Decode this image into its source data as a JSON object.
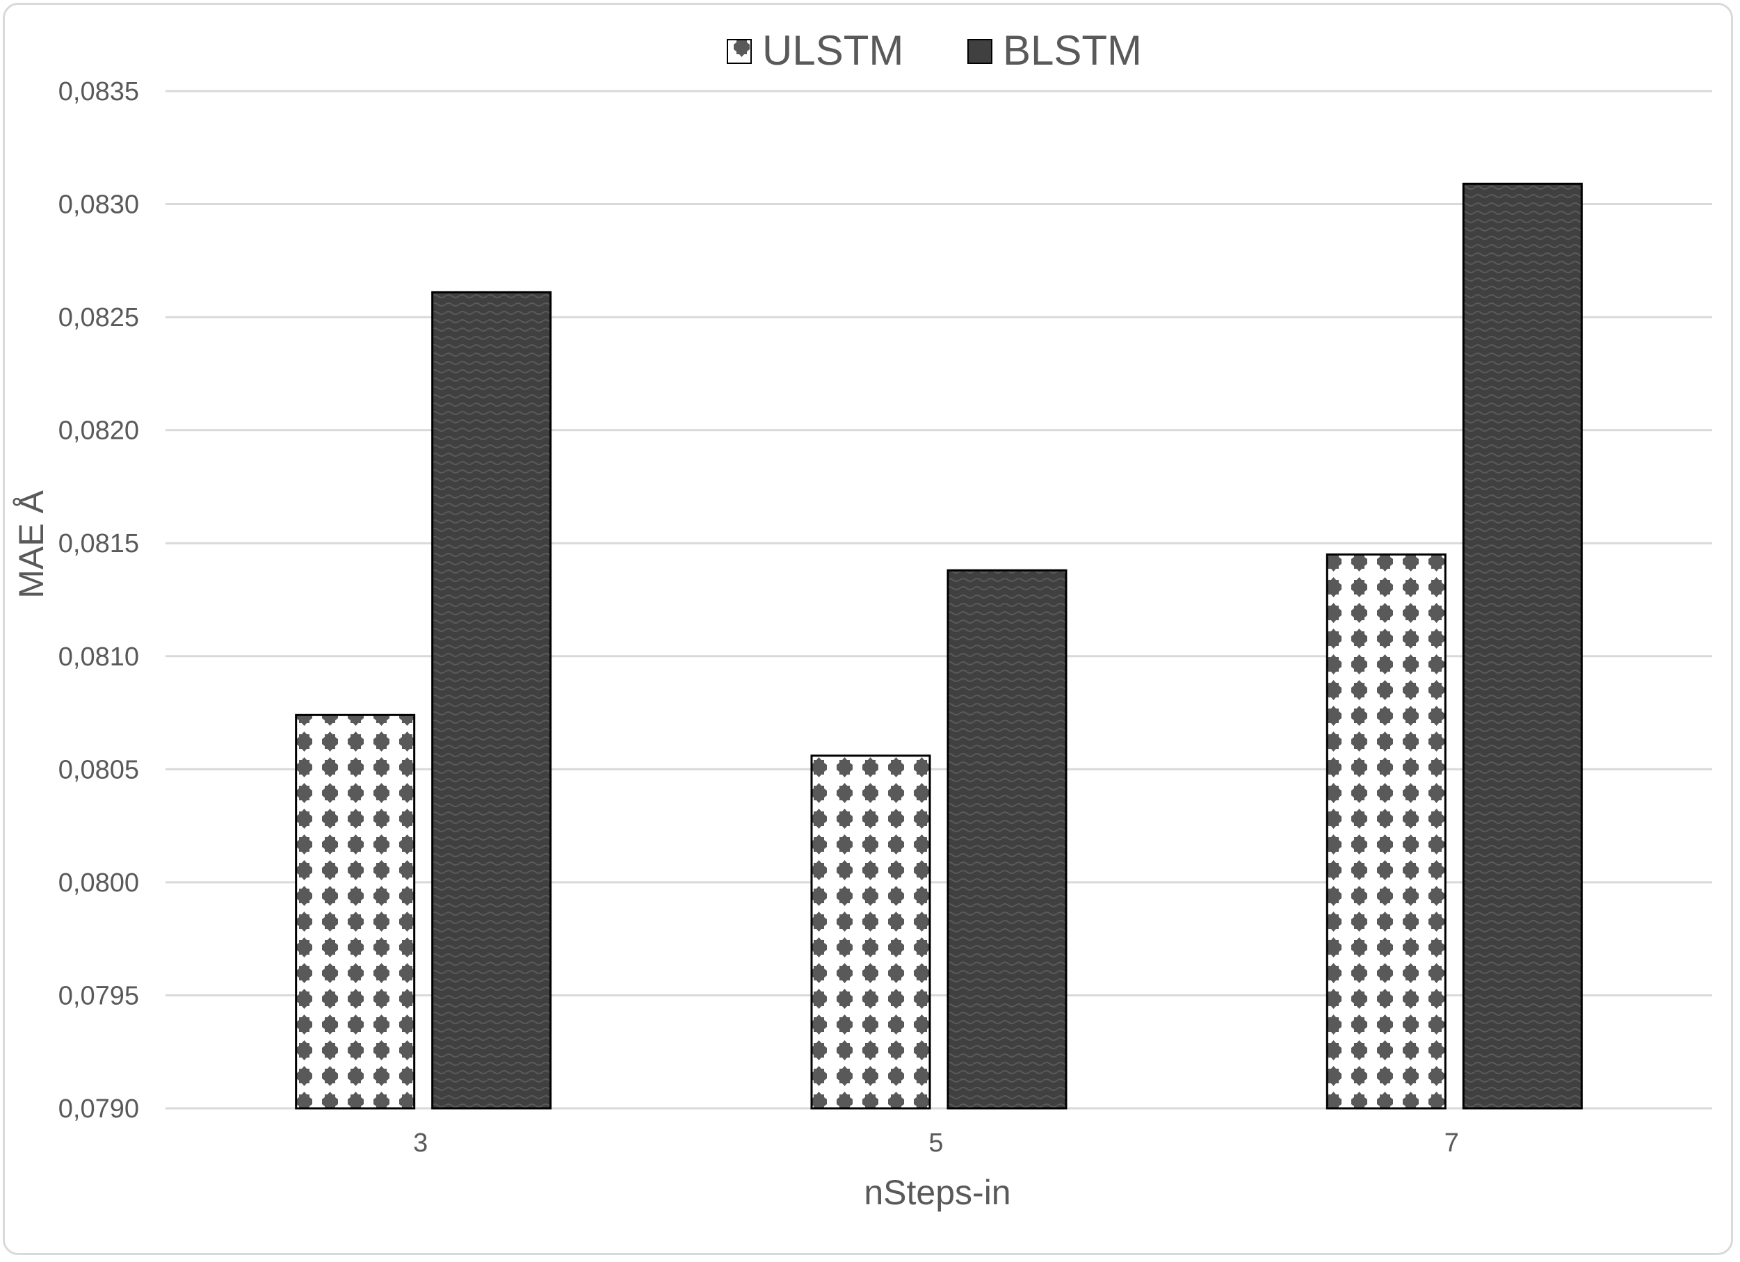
{
  "chart_data": {
    "type": "bar",
    "categories": [
      "3",
      "5",
      "7"
    ],
    "series": [
      {
        "name": "ULSTM",
        "values": [
          0.08074,
          0.08056,
          0.08145
        ]
      },
      {
        "name": "BLSTM",
        "values": [
          0.08261,
          0.08138,
          0.08309
        ]
      }
    ],
    "xlabel": "nSteps-in",
    "ylabel": "MAE Å",
    "ylim": [
      0.079,
      0.0835
    ],
    "yticks": [
      "0,0790",
      "0,0795",
      "0,0800",
      "0,0805",
      "0,0810",
      "0,0815",
      "0,0820",
      "0,0825",
      "0,0830",
      "0,0835"
    ],
    "ytick_values": [
      0.079,
      0.0795,
      0.08,
      0.0805,
      0.081,
      0.0815,
      0.082,
      0.0825,
      0.083,
      0.0835
    ],
    "grid": true,
    "legend_position": "top-center",
    "colors": {
      "gridline": "#d9d9d9",
      "text": "#595959",
      "ulstm_fill": "#ffffff",
      "ulstm_pattern": "#595959",
      "blstm_fill": "#404040",
      "bar_border": "#000000"
    }
  }
}
